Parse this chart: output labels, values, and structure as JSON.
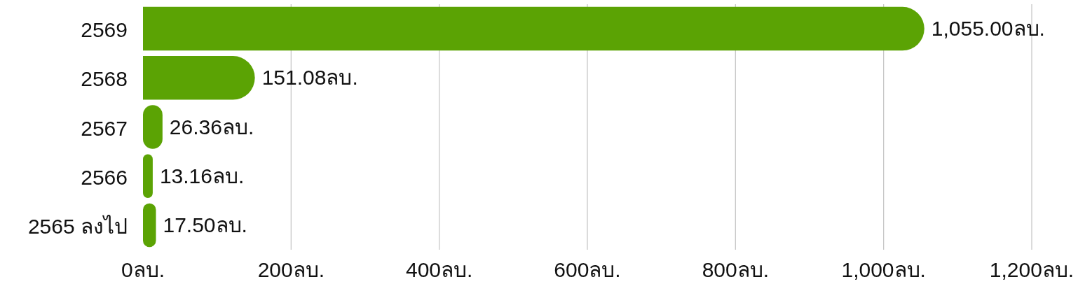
{
  "chart_data": {
    "type": "bar",
    "orientation": "horizontal",
    "categories": [
      "2569",
      "2568",
      "2567",
      "2566",
      "2565 ลงไป"
    ],
    "values": [
      1055.0,
      151.08,
      26.36,
      13.16,
      17.5
    ],
    "value_labels": [
      "1,055.00ลบ.",
      "151.08ลบ.",
      "26.36ลบ.",
      "13.16ลบ.",
      "17.50ลบ."
    ],
    "color": "#5ba304",
    "xlim": [
      0,
      1200
    ],
    "xticks": [
      {
        "value": 0,
        "label": "0ลบ."
      },
      {
        "value": 200,
        "label": "200ลบ."
      },
      {
        "value": 400,
        "label": "400ลบ."
      },
      {
        "value": 600,
        "label": "600ลบ."
      },
      {
        "value": 800,
        "label": "800ลบ."
      },
      {
        "value": 1000,
        "label": "1,000ลบ."
      },
      {
        "value": 1200,
        "label": "1,200ลบ."
      }
    ],
    "grid": "x"
  }
}
